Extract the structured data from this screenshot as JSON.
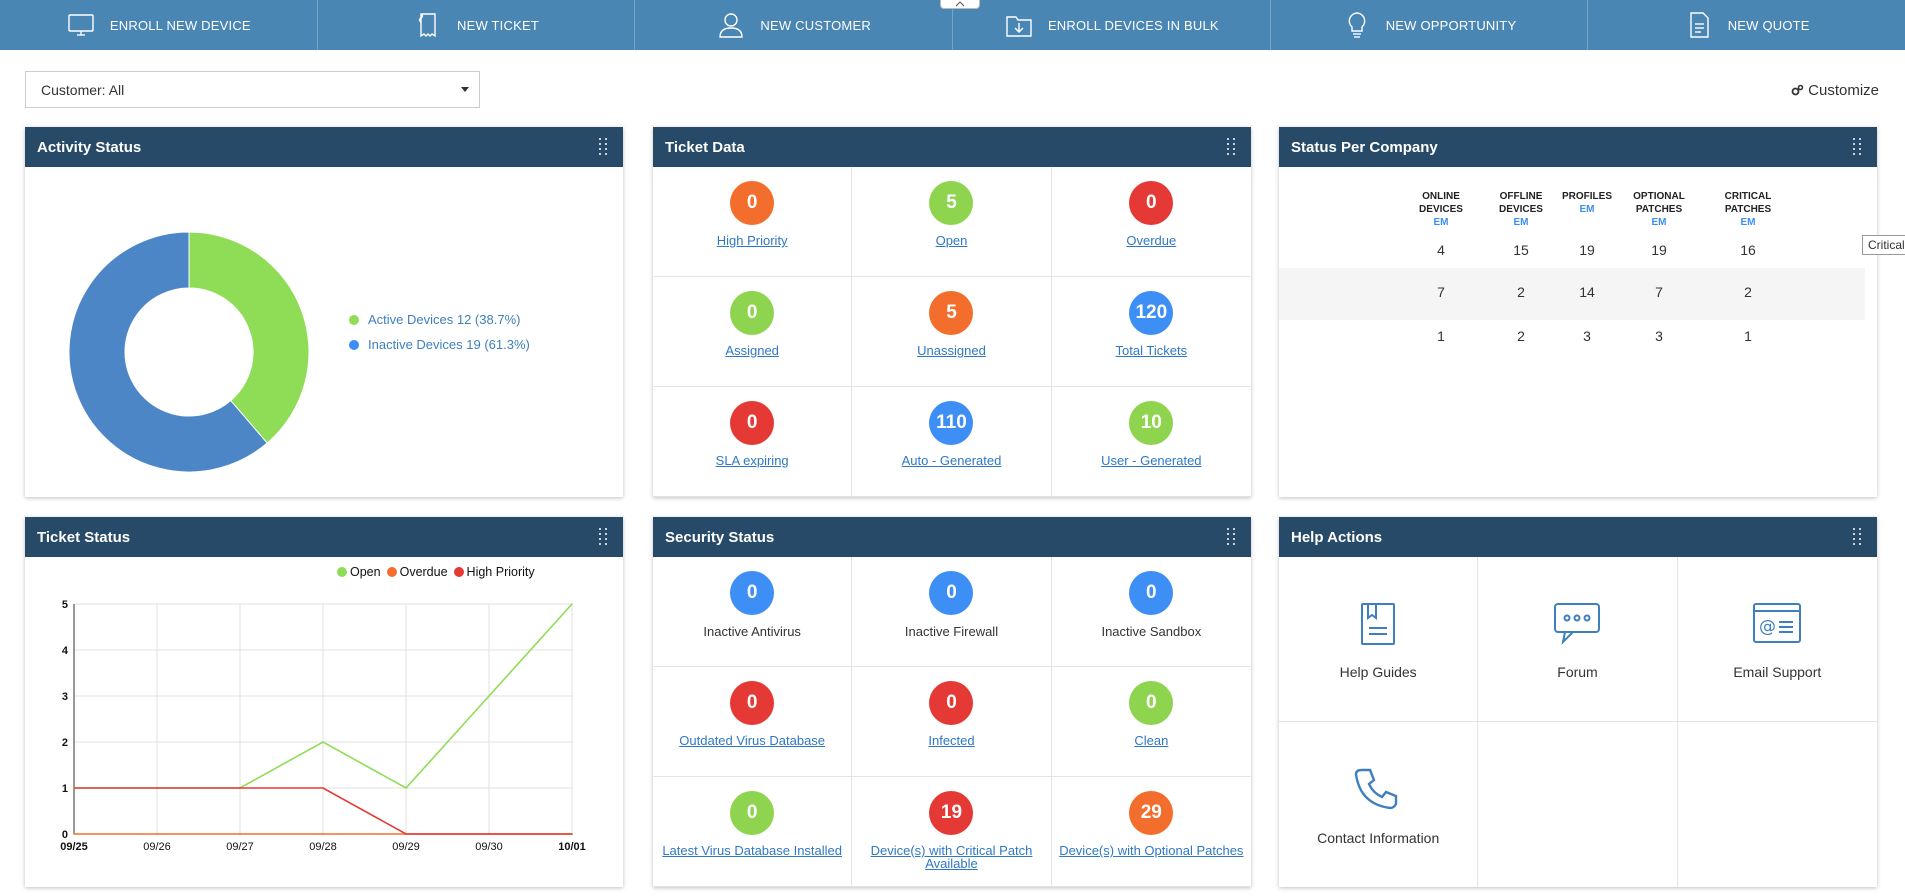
{
  "topbar": {
    "actions": [
      {
        "label": "ENROLL NEW DEVICE",
        "icon": "monitor-icon"
      },
      {
        "label": "NEW TICKET",
        "icon": "ticket-icon"
      },
      {
        "label": "NEW CUSTOMER",
        "icon": "user-icon"
      },
      {
        "label": "ENROLL DEVICES IN BULK",
        "icon": "folder-download-icon"
      },
      {
        "label": "NEW OPPORTUNITY",
        "icon": "lightbulb-icon"
      },
      {
        "label": "NEW QUOTE",
        "icon": "document-icon"
      }
    ]
  },
  "customer_filter": {
    "value": "Customer: All"
  },
  "customize": {
    "label": "Customize"
  },
  "widgets": {
    "activity": {
      "title": "Activity Status",
      "legend": [
        {
          "label": "Active Devices 12 (38.7%)",
          "value": 12,
          "color": "#8fdc56"
        },
        {
          "label": "Inactive Devices 19 (61.3%)",
          "value": 19,
          "color": "#4d86c6"
        }
      ]
    },
    "ticket_data": {
      "title": "Ticket Data",
      "tiles": [
        {
          "value": "0",
          "label": "High Priority",
          "color": "orange"
        },
        {
          "value": "5",
          "label": "Open",
          "color": "green"
        },
        {
          "value": "0",
          "label": "Overdue",
          "color": "red"
        },
        {
          "value": "0",
          "label": "Assigned",
          "color": "green"
        },
        {
          "value": "5",
          "label": "Unassigned",
          "color": "orange"
        },
        {
          "value": "120",
          "label": "Total Tickets",
          "color": "blue"
        },
        {
          "value": "0",
          "label": "SLA expiring",
          "color": "red"
        },
        {
          "value": "110",
          "label": "Auto - Generated",
          "color": "blue"
        },
        {
          "value": "10",
          "label": "User - Generated",
          "color": "green"
        }
      ]
    },
    "status_per_company": {
      "title": "Status Per Company",
      "columns": [
        {
          "label1": "ONLINE",
          "label2": "DEVICES",
          "sub": "EM"
        },
        {
          "label1": "OFFLINE",
          "label2": "DEVICES",
          "sub": "EM"
        },
        {
          "label1": "",
          "label2": "PROFILES",
          "sub": "EM"
        },
        {
          "label1": "OPTIONAL",
          "label2": "PATCHES",
          "sub": "EM"
        },
        {
          "label1": "CRITICAL",
          "label2": "PATCHES",
          "sub": "EM"
        }
      ],
      "rows": [
        [
          "4",
          "15",
          "19",
          "19",
          "16"
        ],
        [
          "7",
          "2",
          "14",
          "7",
          "2"
        ],
        [
          "1",
          "2",
          "3",
          "3",
          "1"
        ]
      ],
      "tooltip": "Critical Patches"
    },
    "ticket_status": {
      "title": "Ticket Status"
    },
    "security": {
      "title": "Security Status",
      "tiles": [
        {
          "value": "0",
          "label": "Inactive Antivirus",
          "color": "blue",
          "link": false
        },
        {
          "value": "0",
          "label": "Inactive Firewall",
          "color": "blue",
          "link": false
        },
        {
          "value": "0",
          "label": "Inactive Sandbox",
          "color": "blue",
          "link": false
        },
        {
          "value": "0",
          "label": "Outdated Virus Database",
          "color": "red",
          "link": true
        },
        {
          "value": "0",
          "label": "Infected",
          "color": "red",
          "link": true
        },
        {
          "value": "0",
          "label": "Clean",
          "color": "green",
          "link": true
        },
        {
          "value": "0",
          "label": "Latest Virus Database Installed",
          "color": "green",
          "link": true
        },
        {
          "value": "19",
          "label": "Device(s) with Critical Patch Available",
          "color": "red",
          "link": true
        },
        {
          "value": "29",
          "label": "Device(s) with Optional Patches",
          "color": "orange",
          "link": true
        }
      ]
    },
    "help": {
      "title": "Help Actions",
      "items": [
        {
          "label": "Help Guides",
          "icon": "book-icon"
        },
        {
          "label": "Forum",
          "icon": "chat-bubbles-icon"
        },
        {
          "label": "Email Support",
          "icon": "email-window-icon"
        },
        {
          "label": "Contact Information",
          "icon": "phone-icon"
        }
      ]
    }
  },
  "chart_data": {
    "type": "line",
    "x": [
      "09/25",
      "09/26",
      "09/27",
      "09/28",
      "09/29",
      "09/30",
      "10/01"
    ],
    "ylim": [
      0,
      5
    ],
    "yticks": [
      "0",
      "1",
      "2",
      "3",
      "4",
      "5"
    ],
    "grid": true,
    "legend_position": "top-right",
    "series": [
      {
        "name": "Open",
        "color": "#8fdc56",
        "values": [
          1,
          1,
          1,
          2,
          1,
          3,
          5
        ]
      },
      {
        "name": "Overdue",
        "color": "#f36e2c",
        "values": [
          0,
          0,
          0,
          0,
          0,
          0,
          0
        ]
      },
      {
        "name": "High Priority",
        "color": "#e53935",
        "values": [
          1,
          1,
          1,
          1,
          0,
          0,
          0
        ]
      }
    ]
  }
}
